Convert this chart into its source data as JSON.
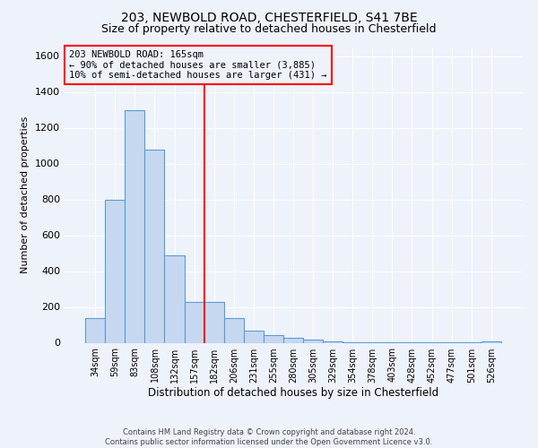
{
  "title1": "203, NEWBOLD ROAD, CHESTERFIELD, S41 7BE",
  "title2": "Size of property relative to detached houses in Chesterfield",
  "xlabel": "Distribution of detached houses by size in Chesterfield",
  "ylabel": "Number of detached properties",
  "categories": [
    "34sqm",
    "59sqm",
    "83sqm",
    "108sqm",
    "132sqm",
    "157sqm",
    "182sqm",
    "206sqm",
    "231sqm",
    "255sqm",
    "280sqm",
    "305sqm",
    "329sqm",
    "354sqm",
    "378sqm",
    "403sqm",
    "428sqm",
    "452sqm",
    "477sqm",
    "501sqm",
    "526sqm"
  ],
  "values": [
    140,
    800,
    1300,
    1080,
    490,
    230,
    230,
    140,
    70,
    45,
    30,
    20,
    10,
    5,
    5,
    3,
    3,
    3,
    3,
    3,
    8
  ],
  "bar_color": "#c5d8f0",
  "bar_edge_color": "#5b9bd5",
  "vline_x": 5.5,
  "vline_color": "red",
  "annotation_title": "203 NEWBOLD ROAD: 165sqm",
  "annotation_line1": "← 90% of detached houses are smaller (3,885)",
  "annotation_line2": "10% of semi-detached houses are larger (431) →",
  "annotation_box_color": "red",
  "ylim": [
    0,
    1650
  ],
  "yticks": [
    0,
    200,
    400,
    600,
    800,
    1000,
    1200,
    1400,
    1600
  ],
  "footer1": "Contains HM Land Registry data © Crown copyright and database right 2024.",
  "footer2": "Contains public sector information licensed under the Open Government Licence v3.0.",
  "bg_color": "#eef2fa",
  "grid_color": "#ffffff",
  "title_fontsize": 10,
  "subtitle_fontsize": 9
}
